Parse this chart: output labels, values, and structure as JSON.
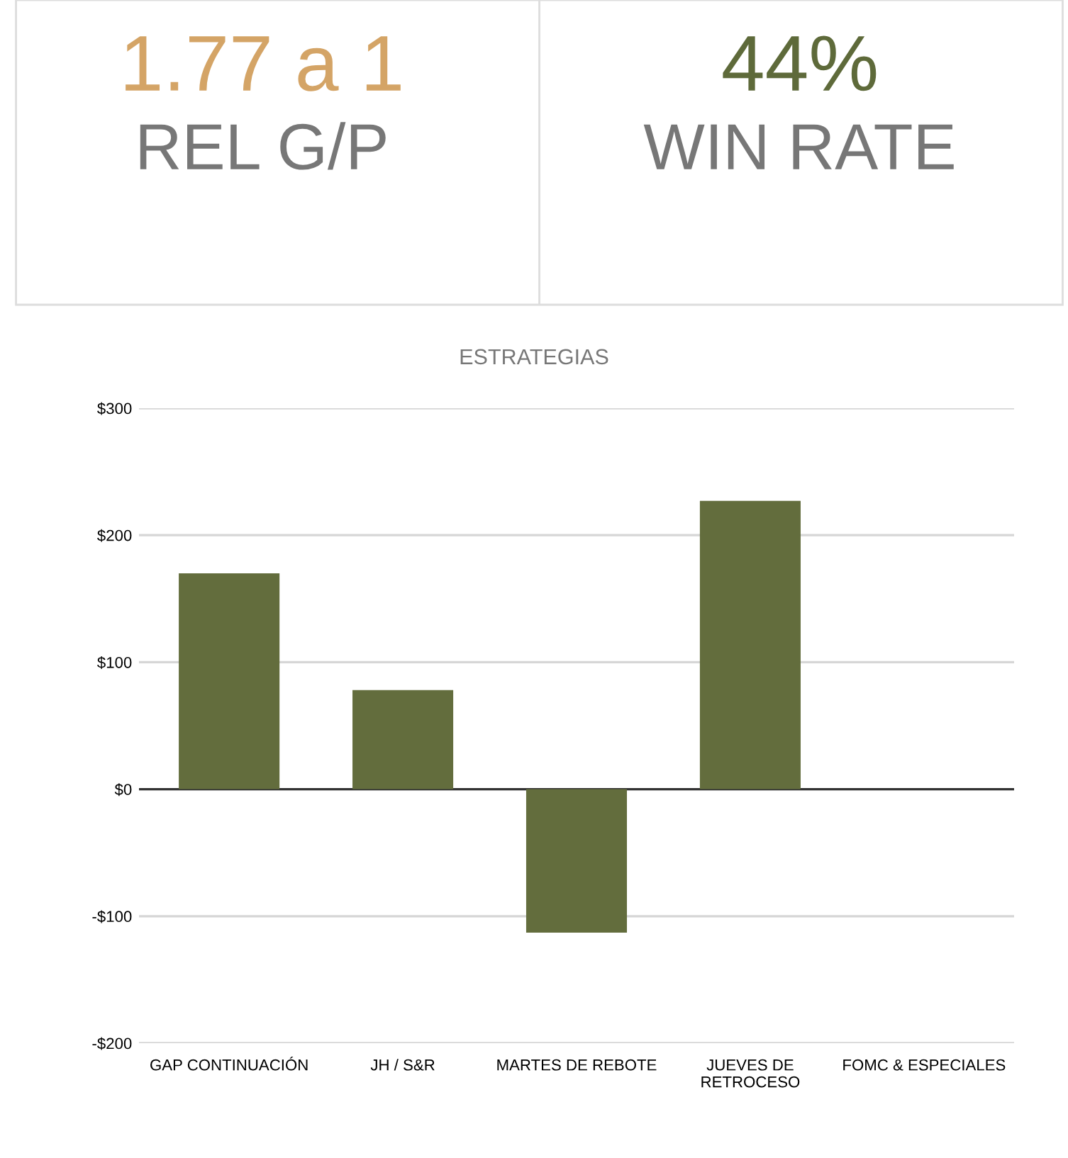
{
  "chart_data": [
    {
      "type": "other",
      "annotations": [
        "1.77 a 1",
        "REL G/P",
        "44%",
        "WIN RATE"
      ]
    },
    {
      "type": "bar",
      "title": "ESTRATEGIAS",
      "categories": [
        "GAP CONTINUACIÓN",
        "JH / S&R",
        "MARTES DE REBOTE",
        "JUEVES DE\nRETROCESO",
        "FOMC & ESPECIALES"
      ],
      "values": [
        170,
        78,
        -113,
        227,
        0
      ],
      "color": "#636d3d",
      "ylim": [
        -200,
        300
      ],
      "yticks": [
        {
          "value": -200,
          "label": "-$200"
        },
        {
          "value": -100,
          "label": "-$100"
        },
        {
          "value": 0,
          "label": "$0"
        },
        {
          "value": 100,
          "label": "$100"
        },
        {
          "value": 200,
          "label": "$200"
        },
        {
          "value": 300,
          "label": "$300"
        }
      ],
      "grid": "y",
      "legend": false
    }
  ]
}
